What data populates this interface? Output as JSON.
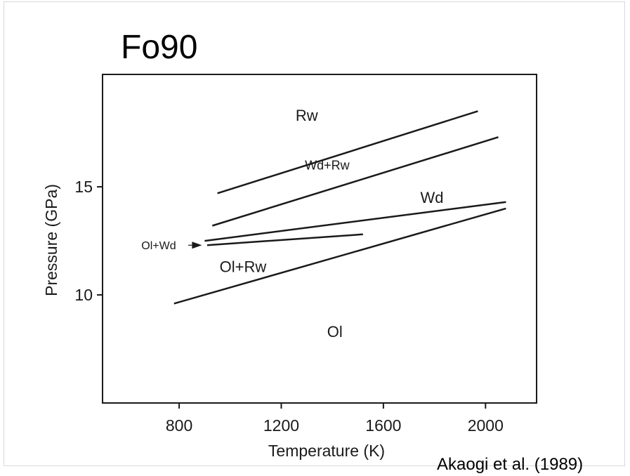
{
  "slide": {
    "title": "Fo90",
    "citation": "Akaogi et al. (1989)"
  },
  "chart_data": {
    "type": "line",
    "xlabel": "Temperature (K)",
    "ylabel": "Pressure (GPa)",
    "xlim": [
      500,
      2200
    ],
    "ylim": [
      5,
      20.2
    ],
    "xticks": [
      800,
      1200,
      1600,
      2000
    ],
    "yticks": [
      10,
      15
    ],
    "grid": false,
    "series": [
      {
        "values": [
          [
            950,
            14.7
          ],
          [
            1970,
            18.5
          ]
        ]
      },
      {
        "values": [
          [
            930,
            13.2
          ],
          [
            2050,
            17.3
          ]
        ]
      },
      {
        "values": [
          [
            900,
            12.5
          ],
          [
            2080,
            14.3
          ]
        ]
      },
      {
        "values": [
          [
            910,
            12.3
          ],
          [
            1520,
            12.8
          ]
        ]
      },
      {
        "values": [
          [
            780,
            9.6
          ],
          [
            2080,
            14.0
          ]
        ]
      }
    ],
    "annotations": [
      {
        "text": "Rw",
        "x": 1300,
        "y": 18.3
      },
      {
        "text": "Wd+Rw",
        "x": 1380,
        "y": 16.0
      },
      {
        "text": "Wd",
        "x": 1790,
        "y": 14.5
      },
      {
        "text": "Ol+Rw",
        "x": 1050,
        "y": 11.3
      },
      {
        "text": "Ol",
        "x": 1410,
        "y": 8.3
      },
      {
        "text": "Ol+Wd",
        "x": 720,
        "y": 12.3,
        "arrow_to": [
          900,
          12.3
        ]
      }
    ]
  }
}
